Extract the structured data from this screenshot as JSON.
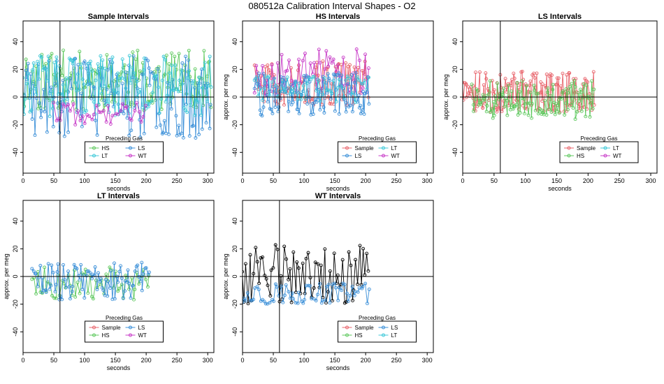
{
  "figure": {
    "title": "080512a   Calibration Interval Shapes - O2"
  },
  "colors": {
    "Sample": "#e8636b",
    "HS": "#5cc85c",
    "LS": "#3a8fd8",
    "LT": "#3cc8d8",
    "WT": "#c83cc8",
    "black": "#000000"
  },
  "chart_data": [
    {
      "id": "sample",
      "type": "line",
      "title": "Sample Intervals",
      "xlabel": "seconds",
      "ylabel": "",
      "xlim": [
        0,
        310
      ],
      "ylim": [
        -55,
        55
      ],
      "xticks": [
        0,
        50,
        100,
        150,
        200,
        250,
        300
      ],
      "yticks": [
        -40,
        -20,
        0,
        20,
        40
      ],
      "vline": 60,
      "hline": 0,
      "legend": {
        "title": "Preceding Gas",
        "entries": [
          "HS",
          "LS",
          "LT",
          "WT"
        ],
        "placement": "bottom-center"
      },
      "series": [
        {
          "name": "HS",
          "color": "#5cc85c",
          "x0": 0,
          "x1": 305,
          "n": 140,
          "mean": 12,
          "amp": 22,
          "seed": 11
        },
        {
          "name": "LS",
          "color": "#3a8fd8",
          "x0": 0,
          "x1": 305,
          "n": 140,
          "mean": 0,
          "amp": 30,
          "seed": 23
        },
        {
          "name": "LT",
          "color": "#3cc8d8",
          "x0": 0,
          "x1": 305,
          "n": 140,
          "mean": 8,
          "amp": 22,
          "seed": 37
        },
        {
          "name": "WT",
          "color": "#c83cc8",
          "x0": 50,
          "x1": 200,
          "n": 40,
          "mean": -12,
          "amp": 8,
          "seed": 41
        }
      ]
    },
    {
      "id": "hs",
      "type": "line",
      "title": "HS Intervals",
      "xlabel": "seconds",
      "ylabel": "approx. per meg",
      "xlim": [
        0,
        310
      ],
      "ylim": [
        -55,
        55
      ],
      "xticks": [
        0,
        50,
        100,
        150,
        200,
        250,
        300
      ],
      "yticks": [
        -40,
        -20,
        0,
        20,
        40
      ],
      "vline": 60,
      "hline": 0,
      "legend": {
        "title": "Preceding Gas",
        "entries": [
          "Sample",
          "LT",
          "LS",
          "WT"
        ],
        "placement": "bottom-right"
      },
      "series": [
        {
          "name": "Sample",
          "color": "#e8636b",
          "x0": 20,
          "x1": 205,
          "n": 100,
          "mean": 10,
          "amp": 16,
          "seed": 51
        },
        {
          "name": "WT",
          "color": "#c83cc8",
          "x0": 20,
          "x1": 205,
          "n": 60,
          "mean": 18,
          "amp": 18,
          "seed": 53
        },
        {
          "name": "LS",
          "color": "#3a8fd8",
          "x0": 20,
          "x1": 205,
          "n": 110,
          "mean": 2,
          "amp": 16,
          "seed": 59
        },
        {
          "name": "LT",
          "color": "#3cc8d8",
          "x0": 20,
          "x1": 205,
          "n": 60,
          "mean": 6,
          "amp": 10,
          "seed": 61
        }
      ]
    },
    {
      "id": "ls",
      "type": "line",
      "title": "LS Intervals",
      "xlabel": "seconds",
      "ylabel": "approx. per meg",
      "xlim": [
        0,
        310
      ],
      "ylim": [
        -55,
        55
      ],
      "xticks": [
        0,
        50,
        100,
        150,
        200,
        250,
        300
      ],
      "yticks": [
        -40,
        -20,
        0,
        20,
        40
      ],
      "vline": 60,
      "hline": 0,
      "legend": {
        "title": "Preceding Gas",
        "entries": [
          "Sample",
          "LT",
          "HS",
          "WT"
        ],
        "placement": "bottom-right"
      },
      "series": [
        {
          "name": "Sample",
          "color": "#e8636b",
          "x0": 0,
          "x1": 210,
          "n": 150,
          "mean": 4,
          "amp": 15,
          "seed": 71
        },
        {
          "name": "HS",
          "color": "#5cc85c",
          "x0": 15,
          "x1": 210,
          "n": 120,
          "mean": -2,
          "amp": 14,
          "seed": 73
        }
      ]
    },
    {
      "id": "lt",
      "type": "line",
      "title": "LT Intervals",
      "xlabel": "seconds",
      "ylabel": "approx. per meg",
      "xlim": [
        0,
        310
      ],
      "ylim": [
        -55,
        55
      ],
      "xticks": [
        0,
        50,
        100,
        150,
        200,
        250,
        300
      ],
      "yticks": [
        -40,
        -20,
        0,
        20,
        40
      ],
      "vline": 60,
      "hline": 0,
      "legend": {
        "title": "Preceding Gas",
        "entries": [
          "Sample",
          "LS",
          "HS",
          "WT"
        ],
        "placement": "bottom-center"
      },
      "series": [
        {
          "name": "HS",
          "color": "#5cc85c",
          "x0": 15,
          "x1": 205,
          "n": 60,
          "mean": -5,
          "amp": 12,
          "seed": 81
        },
        {
          "name": "LS",
          "color": "#3a8fd8",
          "x0": 15,
          "x1": 205,
          "n": 90,
          "mean": -3,
          "amp": 14,
          "seed": 83
        }
      ]
    },
    {
      "id": "wt",
      "type": "line",
      "title": "WT Intervals",
      "xlabel": "seconds",
      "ylabel": "approx. per meg",
      "xlim": [
        0,
        310
      ],
      "ylim": [
        -55,
        55
      ],
      "xticks": [
        0,
        50,
        100,
        150,
        200,
        250,
        300
      ],
      "yticks": [
        -40,
        -20,
        0,
        20,
        40
      ],
      "vline": 60,
      "hline": 0,
      "legend": {
        "title": "Preceding Gas",
        "entries": [
          "Sample",
          "LS",
          "HS",
          "LT"
        ],
        "placement": "bottom-right"
      },
      "series": [
        {
          "name": "Sample",
          "color": "#000000",
          "x0": 0,
          "x1": 205,
          "n": 70,
          "mean": 2,
          "amp": 22,
          "seed": 91
        },
        {
          "name": "LS",
          "color": "#3a8fd8",
          "x0": 0,
          "x1": 205,
          "n": 70,
          "mean": -12,
          "amp": 8,
          "seed": 97
        }
      ]
    }
  ]
}
